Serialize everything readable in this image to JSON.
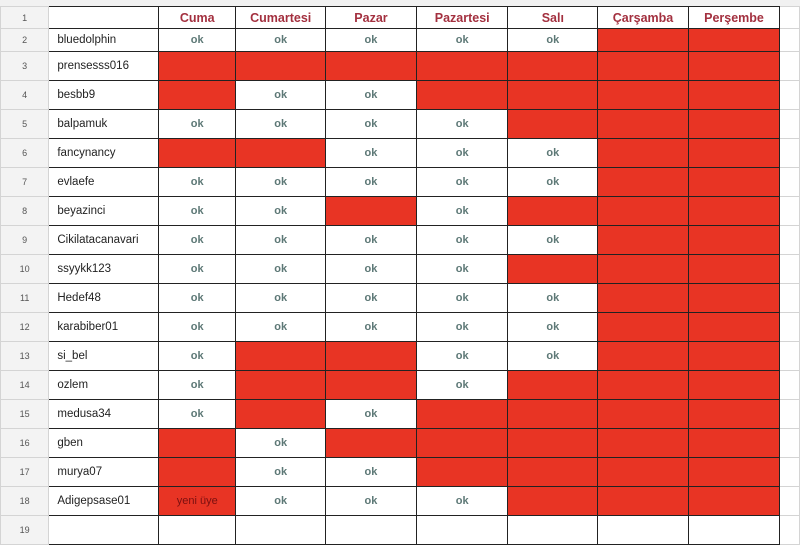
{
  "columns": [
    "Cuma",
    "Cumartesi",
    "Pazar",
    "Pazartesi",
    "Salı",
    "Çarşamba",
    "Perşembe"
  ],
  "colors": {
    "red": "#e83424",
    "header_text": "#a3303f",
    "ok_text": "#5d7876"
  },
  "rows": [
    {
      "num": "2",
      "name": "bluedolphin",
      "cells": [
        {
          "text": "ok",
          "fill": "white"
        },
        {
          "text": "ok",
          "fill": "white"
        },
        {
          "text": "ok",
          "fill": "white"
        },
        {
          "text": "ok",
          "fill": "white"
        },
        {
          "text": "ok",
          "fill": "white"
        },
        {
          "text": "",
          "fill": "red"
        },
        {
          "text": "",
          "fill": "red"
        }
      ]
    },
    {
      "num": "3",
      "name": "prensesss016",
      "cells": [
        {
          "text": "",
          "fill": "red"
        },
        {
          "text": "",
          "fill": "red"
        },
        {
          "text": "",
          "fill": "red"
        },
        {
          "text": "",
          "fill": "red"
        },
        {
          "text": "",
          "fill": "red"
        },
        {
          "text": "",
          "fill": "red"
        },
        {
          "text": "",
          "fill": "red"
        }
      ]
    },
    {
      "num": "4",
      "name": "besbb9",
      "cells": [
        {
          "text": "",
          "fill": "red"
        },
        {
          "text": "ok",
          "fill": "white"
        },
        {
          "text": "ok",
          "fill": "white"
        },
        {
          "text": "",
          "fill": "red"
        },
        {
          "text": "",
          "fill": "red"
        },
        {
          "text": "",
          "fill": "red"
        },
        {
          "text": "",
          "fill": "red"
        }
      ]
    },
    {
      "num": "5",
      "name": "balpamuk",
      "cells": [
        {
          "text": "ok",
          "fill": "white"
        },
        {
          "text": "ok",
          "fill": "white"
        },
        {
          "text": "ok",
          "fill": "white"
        },
        {
          "text": "ok",
          "fill": "white"
        },
        {
          "text": "",
          "fill": "red"
        },
        {
          "text": "",
          "fill": "red"
        },
        {
          "text": "",
          "fill": "red"
        }
      ]
    },
    {
      "num": "6",
      "name": "fancynancy",
      "cells": [
        {
          "text": "",
          "fill": "red"
        },
        {
          "text": "",
          "fill": "red"
        },
        {
          "text": "ok",
          "fill": "white"
        },
        {
          "text": "ok",
          "fill": "white"
        },
        {
          "text": "ok",
          "fill": "white"
        },
        {
          "text": "",
          "fill": "red"
        },
        {
          "text": "",
          "fill": "red"
        }
      ]
    },
    {
      "num": "7",
      "name": "evlaefe",
      "cells": [
        {
          "text": "ok",
          "fill": "white"
        },
        {
          "text": "ok",
          "fill": "white"
        },
        {
          "text": "ok",
          "fill": "white"
        },
        {
          "text": "ok",
          "fill": "white"
        },
        {
          "text": "ok",
          "fill": "white"
        },
        {
          "text": "",
          "fill": "red"
        },
        {
          "text": "",
          "fill": "red"
        }
      ]
    },
    {
      "num": "8",
      "name": "beyazinci",
      "cells": [
        {
          "text": "ok",
          "fill": "white"
        },
        {
          "text": "ok",
          "fill": "white"
        },
        {
          "text": "",
          "fill": "red"
        },
        {
          "text": "ok",
          "fill": "white"
        },
        {
          "text": "",
          "fill": "red"
        },
        {
          "text": "",
          "fill": "red"
        },
        {
          "text": "",
          "fill": "red"
        }
      ]
    },
    {
      "num": "9",
      "name": "Cikilatacanavari",
      "cells": [
        {
          "text": "ok",
          "fill": "white"
        },
        {
          "text": "ok",
          "fill": "white"
        },
        {
          "text": "ok",
          "fill": "white"
        },
        {
          "text": "ok",
          "fill": "white"
        },
        {
          "text": "ok",
          "fill": "white"
        },
        {
          "text": "",
          "fill": "red"
        },
        {
          "text": "",
          "fill": "red"
        }
      ]
    },
    {
      "num": "10",
      "name": "ssyykk123",
      "cells": [
        {
          "text": "ok",
          "fill": "white"
        },
        {
          "text": "ok",
          "fill": "white"
        },
        {
          "text": "ok",
          "fill": "white"
        },
        {
          "text": "ok",
          "fill": "white"
        },
        {
          "text": "",
          "fill": "red"
        },
        {
          "text": "",
          "fill": "red"
        },
        {
          "text": "",
          "fill": "red"
        }
      ]
    },
    {
      "num": "11",
      "name": "Hedef48",
      "cells": [
        {
          "text": "ok",
          "fill": "white"
        },
        {
          "text": "ok",
          "fill": "white"
        },
        {
          "text": "ok",
          "fill": "white"
        },
        {
          "text": "ok",
          "fill": "white"
        },
        {
          "text": "ok",
          "fill": "white"
        },
        {
          "text": "",
          "fill": "red"
        },
        {
          "text": "",
          "fill": "red"
        }
      ]
    },
    {
      "num": "12",
      "name": "karabiber01",
      "cells": [
        {
          "text": "ok",
          "fill": "white"
        },
        {
          "text": "ok",
          "fill": "white"
        },
        {
          "text": "ok",
          "fill": "white"
        },
        {
          "text": "ok",
          "fill": "white"
        },
        {
          "text": "ok",
          "fill": "white"
        },
        {
          "text": "",
          "fill": "red"
        },
        {
          "text": "",
          "fill": "red"
        }
      ]
    },
    {
      "num": "13",
      "name": "si_bel",
      "cells": [
        {
          "text": "ok",
          "fill": "white"
        },
        {
          "text": "",
          "fill": "red"
        },
        {
          "text": "",
          "fill": "red"
        },
        {
          "text": "ok",
          "fill": "white"
        },
        {
          "text": "ok",
          "fill": "white"
        },
        {
          "text": "",
          "fill": "red"
        },
        {
          "text": "",
          "fill": "red"
        }
      ]
    },
    {
      "num": "14",
      "name": "ozlem",
      "cells": [
        {
          "text": "ok",
          "fill": "white"
        },
        {
          "text": "",
          "fill": "red"
        },
        {
          "text": "",
          "fill": "red"
        },
        {
          "text": "ok",
          "fill": "white"
        },
        {
          "text": "",
          "fill": "red"
        },
        {
          "text": "",
          "fill": "red"
        },
        {
          "text": "",
          "fill": "red"
        }
      ]
    },
    {
      "num": "15",
      "name": "medusa34",
      "cells": [
        {
          "text": "ok",
          "fill": "white"
        },
        {
          "text": "",
          "fill": "red"
        },
        {
          "text": "ok",
          "fill": "white"
        },
        {
          "text": "",
          "fill": "red"
        },
        {
          "text": "",
          "fill": "red"
        },
        {
          "text": "",
          "fill": "red"
        },
        {
          "text": "",
          "fill": "red"
        }
      ]
    },
    {
      "num": "16",
      "name": "gben",
      "cells": [
        {
          "text": "",
          "fill": "red"
        },
        {
          "text": "ok",
          "fill": "white"
        },
        {
          "text": "",
          "fill": "red"
        },
        {
          "text": "",
          "fill": "red"
        },
        {
          "text": "",
          "fill": "red"
        },
        {
          "text": "",
          "fill": "red"
        },
        {
          "text": "",
          "fill": "red"
        }
      ]
    },
    {
      "num": "17",
      "name": "murya07",
      "cells": [
        {
          "text": "",
          "fill": "red"
        },
        {
          "text": "ok",
          "fill": "white"
        },
        {
          "text": "ok",
          "fill": "white"
        },
        {
          "text": "",
          "fill": "red"
        },
        {
          "text": "",
          "fill": "red"
        },
        {
          "text": "",
          "fill": "red"
        },
        {
          "text": "",
          "fill": "red"
        }
      ]
    },
    {
      "num": "18",
      "name": "Adigepsase01",
      "cells": [
        {
          "text": "yeni üye",
          "fill": "red"
        },
        {
          "text": "ok",
          "fill": "white"
        },
        {
          "text": "ok",
          "fill": "white"
        },
        {
          "text": "ok",
          "fill": "white"
        },
        {
          "text": "",
          "fill": "red"
        },
        {
          "text": "",
          "fill": "red"
        },
        {
          "text": "",
          "fill": "red"
        }
      ]
    },
    {
      "num": "19",
      "name": "",
      "cells": [
        {
          "text": "",
          "fill": "white"
        },
        {
          "text": "",
          "fill": "white"
        },
        {
          "text": "",
          "fill": "white"
        },
        {
          "text": "",
          "fill": "white"
        },
        {
          "text": "",
          "fill": "white"
        },
        {
          "text": "",
          "fill": "white"
        },
        {
          "text": "",
          "fill": "white"
        }
      ]
    }
  ],
  "header_row_num": "1"
}
